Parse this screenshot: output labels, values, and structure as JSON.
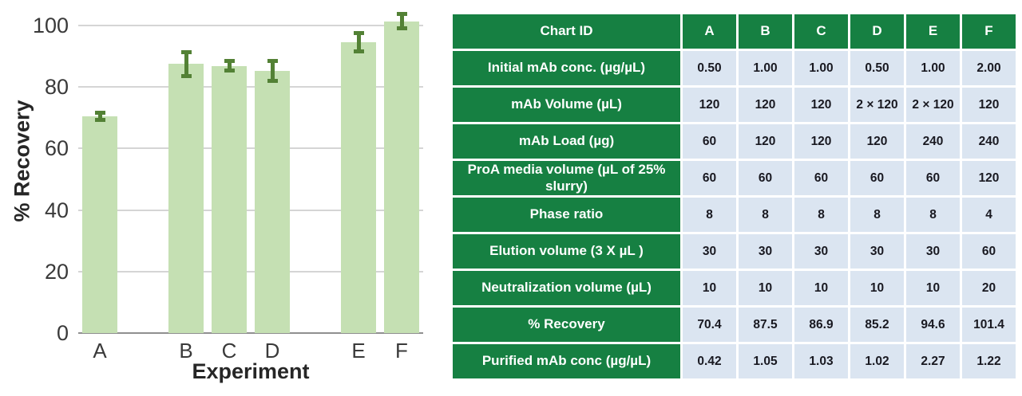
{
  "chart_data": {
    "type": "bar",
    "title": "",
    "xlabel": "Experiment",
    "ylabel": "% Recovery",
    "categories": [
      "A",
      "B",
      "C",
      "D",
      "E",
      "F"
    ],
    "values": [
      70.4,
      87.5,
      86.9,
      85.2,
      94.6,
      101.4
    ],
    "error_bars": [
      1.8,
      4.5,
      2.2,
      3.9,
      3.7,
      2.9
    ],
    "ylim": [
      0,
      100
    ],
    "yticks": [
      0,
      20,
      40,
      60,
      80,
      100
    ],
    "grid": "horizontal",
    "legend": "none",
    "bar_color": "#c5e0b3",
    "error_color": "#538135",
    "slot_positions": [
      0,
      2,
      3,
      4,
      6,
      7
    ],
    "slot_count": 8
  },
  "table": {
    "header": {
      "label": "Chart ID",
      "columns": [
        "A",
        "B",
        "C",
        "D",
        "E",
        "F"
      ]
    },
    "rows": [
      {
        "label": "Initial mAb conc. (µg/µL)",
        "values": [
          "0.50",
          "1.00",
          "1.00",
          "0.50",
          "1.00",
          "2.00"
        ]
      },
      {
        "label": "mAb Volume (µL)",
        "values": [
          "120",
          "120",
          "120",
          "2 × 120",
          "2 × 120",
          "120"
        ]
      },
      {
        "label": "mAb Load (µg)",
        "values": [
          "60",
          "120",
          "120",
          "120",
          "240",
          "240"
        ]
      },
      {
        "label": "ProA media volume (µL of 25% slurry)",
        "values": [
          "60",
          "60",
          "60",
          "60",
          "60",
          "120"
        ]
      },
      {
        "label": "Phase ratio",
        "values": [
          "8",
          "8",
          "8",
          "8",
          "8",
          "4"
        ]
      },
      {
        "label": "Elution volume (3 X µL )",
        "values": [
          "30",
          "30",
          "30",
          "30",
          "30",
          "60"
        ]
      },
      {
        "label": "Neutralization volume (µL)",
        "values": [
          "10",
          "10",
          "10",
          "10",
          "10",
          "20"
        ]
      },
      {
        "label": "% Recovery",
        "values": [
          "70.4",
          "87.5",
          "86.9",
          "85.2",
          "94.6",
          "101.4"
        ]
      },
      {
        "label": "Purified mAb conc (µg/µL)",
        "values": [
          "0.42",
          "1.05",
          "1.03",
          "1.02",
          "2.27",
          "1.22"
        ]
      }
    ],
    "colors": {
      "header_bg": "#168042",
      "header_text": "#ffffff",
      "cell_bg": "#dbe5f1",
      "cell_text": "#191921"
    }
  }
}
